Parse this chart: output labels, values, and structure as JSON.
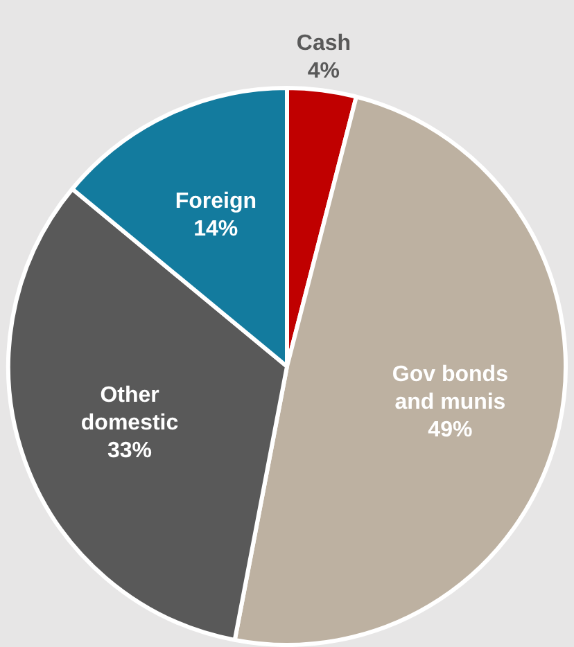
{
  "chart_data": {
    "type": "pie",
    "categories": [
      "Cash",
      "Gov bonds and munis",
      "Other domestic",
      "Foreign"
    ],
    "values": [
      4,
      49,
      33,
      14
    ],
    "value_labels": [
      "4%",
      "49%",
      "33%",
      "14%"
    ],
    "colors": [
      "#c00000",
      "#bdb1a1",
      "#595959",
      "#137b9e"
    ],
    "legend": false
  }
}
